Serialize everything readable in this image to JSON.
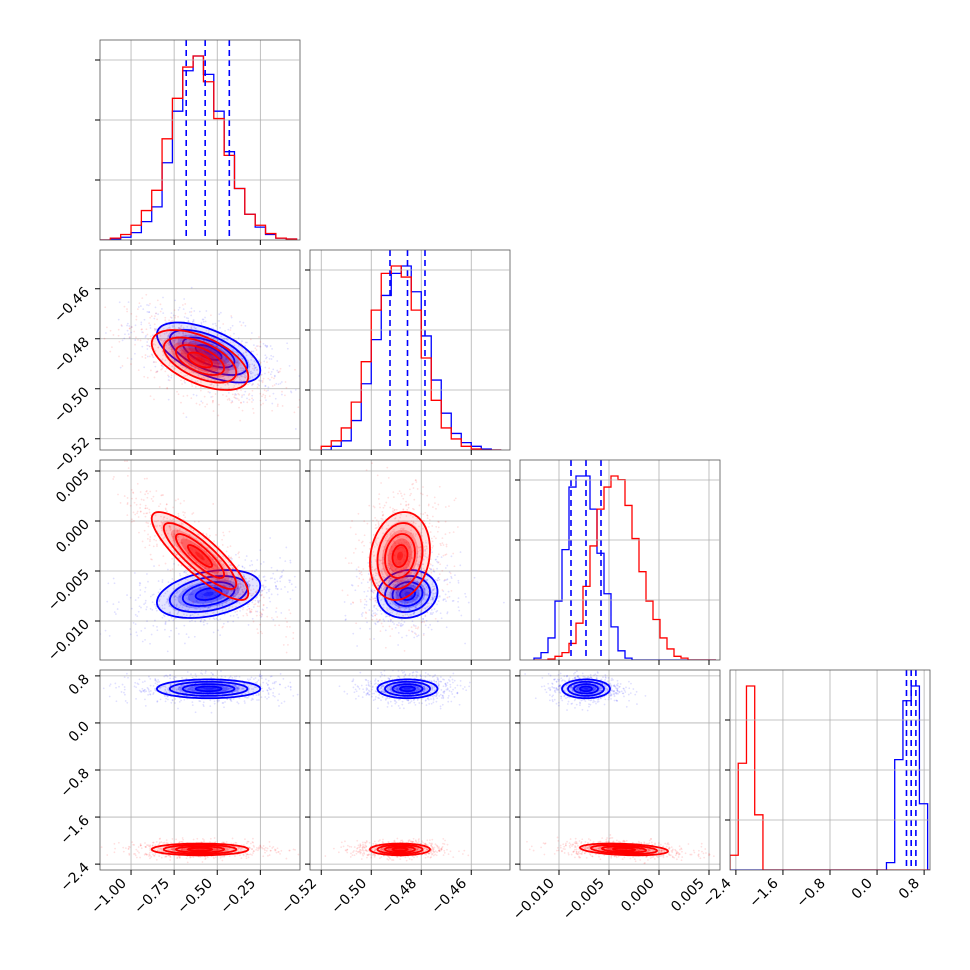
{
  "chart_data": {
    "type": "corner",
    "title": "",
    "series": [
      {
        "name": "",
        "color": "#0000ff"
      },
      {
        "name": "",
        "color": "#ff0000"
      }
    ],
    "params": [
      {
        "range": [
          -1.18,
          -0.02
        ],
        "ticks": [
          -1.0,
          -0.75,
          -0.5,
          -0.25
        ],
        "tick_labels": [
          "−1.00",
          "−0.75",
          "−0.50",
          "−0.25"
        ]
      },
      {
        "range": [
          -0.5245,
          -0.4445
        ],
        "ticks": [
          -0.52,
          -0.5,
          -0.48,
          -0.46
        ],
        "tick_labels": [
          "−0.52",
          "−0.50",
          "−0.48",
          "−0.46"
        ]
      },
      {
        "range": [
          -0.0139,
          0.0061
        ],
        "ticks": [
          -0.01,
          -0.005,
          0.0,
          0.005
        ],
        "tick_labels": [
          "−0.010",
          "−0.005",
          "0.000",
          "0.005"
        ]
      },
      {
        "range": [
          -2.5,
          0.9
        ],
        "ticks": [
          -2.4,
          -1.6,
          -0.8,
          0.0,
          0.8
        ],
        "tick_labels": [
          "−2.4",
          "−1.6",
          "−0.8",
          "0.0",
          "0.8"
        ]
      }
    ],
    "diag_quantiles": [
      [
        -0.68,
        -0.57,
        -0.43
      ],
      [
        -0.4925,
        -0.4855,
        -0.4785
      ],
      [
        -0.0088,
        -0.0073,
        -0.0058
      ],
      [
        0.5,
        0.58,
        0.66
      ]
    ],
    "histograms": {
      "p0": {
        "edges": [
          -1.18,
          -1.12,
          -1.06,
          -1.0,
          -0.94,
          -0.88,
          -0.82,
          -0.76,
          -0.7,
          -0.64,
          -0.58,
          -0.52,
          -0.46,
          -0.4,
          -0.34,
          -0.28,
          -0.22,
          -0.16,
          -0.1,
          -0.04
        ],
        "blue": [
          0.0,
          0.005,
          0.015,
          0.04,
          0.1,
          0.18,
          0.42,
          0.7,
          0.92,
          1.0,
          0.9,
          0.7,
          0.48,
          0.28,
          0.14,
          0.07,
          0.03,
          0.01,
          0.005
        ],
        "red": [
          0.0,
          0.01,
          0.03,
          0.08,
          0.16,
          0.27,
          0.55,
          0.77,
          0.94,
          1.0,
          0.86,
          0.66,
          0.46,
          0.28,
          0.14,
          0.08,
          0.035,
          0.01,
          0.005
        ]
      },
      "p1": {
        "edges": [
          -0.52,
          -0.516,
          -0.512,
          -0.508,
          -0.504,
          -0.5,
          -0.496,
          -0.492,
          -0.488,
          -0.484,
          -0.48,
          -0.476,
          -0.472,
          -0.468,
          -0.464,
          -0.46,
          -0.456,
          -0.452,
          -0.448
        ],
        "blue": [
          0.0,
          0.02,
          0.05,
          0.16,
          0.36,
          0.6,
          0.84,
          0.96,
          1.0,
          0.86,
          0.62,
          0.38,
          0.2,
          0.09,
          0.04,
          0.02,
          0.005,
          0.0
        ],
        "red": [
          0.02,
          0.05,
          0.12,
          0.26,
          0.48,
          0.76,
          0.96,
          1.0,
          0.94,
          0.76,
          0.5,
          0.27,
          0.12,
          0.06,
          0.02,
          0.005,
          0.0,
          0.0
        ]
      },
      "p2": {
        "edges": [
          -0.0125,
          -0.0118,
          -0.0111,
          -0.0104,
          -0.0097,
          -0.009,
          -0.0083,
          -0.0076,
          -0.0069,
          -0.0062,
          -0.0055,
          -0.0048,
          -0.0041,
          -0.0034,
          -0.0027,
          -0.002,
          -0.0013,
          -0.0006,
          0.0001,
          0.0008,
          0.0015,
          0.0022,
          0.0029,
          0.0036,
          0.0043,
          0.005,
          0.0057
        ],
        "blue": [
          0.01,
          0.04,
          0.12,
          0.32,
          0.6,
          0.94,
          1.0,
          1.0,
          0.82,
          0.58,
          0.36,
          0.18,
          0.05,
          0.01,
          0,
          0,
          0,
          0,
          0,
          0,
          0,
          0,
          0,
          0,
          0,
          0
        ],
        "red": [
          0,
          0,
          0.005,
          0.02,
          0.04,
          0.09,
          0.2,
          0.4,
          0.62,
          0.82,
          0.94,
          1.0,
          0.98,
          0.84,
          0.66,
          0.48,
          0.32,
          0.22,
          0.12,
          0.06,
          0.02,
          0.01,
          0.0,
          0.0,
          0.0,
          0.0
        ]
      },
      "p3": {
        "edges": [
          -2.5,
          -2.36,
          -2.22,
          -2.08,
          -1.94,
          -1.8,
          -1.66,
          -1.52,
          -1.38,
          -1.24,
          -1.1,
          -0.96,
          -0.82,
          -0.68,
          -0.54,
          -0.4,
          -0.26,
          -0.12,
          0.02,
          0.16,
          0.3,
          0.44,
          0.58,
          0.72,
          0.86,
          0.9
        ],
        "blue": [
          0,
          0,
          0,
          0,
          0,
          0,
          0,
          0,
          0,
          0,
          0,
          0,
          0,
          0,
          0,
          0,
          0,
          0,
          0,
          0.04,
          0.6,
          0.92,
          1.0,
          0.36,
          0.0
        ],
        "red": [
          0.08,
          0.58,
          1.0,
          0.3,
          0.0,
          0,
          0,
          0,
          0,
          0,
          0,
          0,
          0,
          0,
          0,
          0,
          0,
          0,
          0,
          0,
          0,
          0,
          0,
          0,
          0
        ]
      }
    },
    "joint": {
      "blue": {
        "p1_vs_p0": {
          "mean": [
            -0.55,
            -0.4855
          ],
          "sd": [
            0.15,
            0.006
          ],
          "rho": -0.6
        },
        "p2_vs_p0": {
          "mean": [
            -0.55,
            -0.0073
          ],
          "sd": [
            0.15,
            0.0012
          ],
          "rho": 0.35
        },
        "p2_vs_p1": {
          "mean": [
            -0.4855,
            -0.0073
          ],
          "sd": [
            0.006,
            0.0012
          ],
          "rho": 0.1
        },
        "p3_vs_p0": {
          "mean": [
            -0.55,
            0.58
          ],
          "sd": [
            0.15,
            0.08
          ],
          "rho": 0.0
        },
        "p3_vs_p1": {
          "mean": [
            -0.4855,
            0.58
          ],
          "sd": [
            0.006,
            0.08
          ],
          "rho": 0.0
        },
        "p3_vs_p2": {
          "mean": [
            -0.0073,
            0.58
          ],
          "sd": [
            0.0012,
            0.08
          ],
          "rho": 0.0
        }
      },
      "red": {
        "p1_vs_p0": {
          "mean": [
            -0.6,
            -0.4885
          ],
          "sd": [
            0.14,
            0.006
          ],
          "rho": -0.55
        },
        "p2_vs_p0": {
          "mean": [
            -0.6,
            -0.0035
          ],
          "sd": [
            0.14,
            0.0022
          ],
          "rho": -0.85
        },
        "p2_vs_p1": {
          "mean": [
            -0.4885,
            -0.0035
          ],
          "sd": [
            0.006,
            0.0022
          ],
          "rho": 0.15
        },
        "p3_vs_p0": {
          "mean": [
            -0.6,
            -2.15
          ],
          "sd": [
            0.14,
            0.05
          ],
          "rho": 0.0
        },
        "p3_vs_p1": {
          "mean": [
            -0.4885,
            -2.15
          ],
          "sd": [
            0.006,
            0.05
          ],
          "rho": 0.0
        },
        "p3_vs_p2": {
          "mean": [
            -0.0035,
            -2.15
          ],
          "sd": [
            0.0022,
            0.05
          ],
          "rho": -0.3
        }
      }
    },
    "grid": true
  }
}
